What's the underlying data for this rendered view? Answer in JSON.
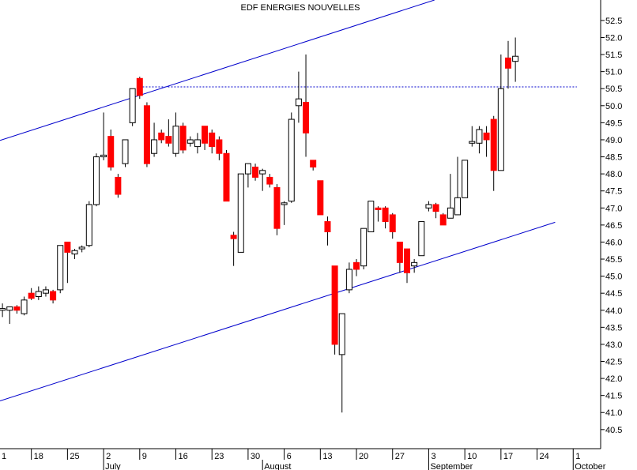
{
  "chart_data": {
    "type": "candlestick",
    "title": "EDF ENERGIES NOUVELLES",
    "x": [
      1,
      2,
      3,
      4,
      5,
      6,
      7,
      8,
      9,
      10,
      11,
      12,
      13,
      14,
      15,
      16,
      17,
      18,
      19,
      20,
      21,
      22,
      23,
      24,
      25,
      26,
      27,
      28,
      29,
      30,
      31,
      32,
      33,
      34,
      35,
      36,
      37,
      38,
      39,
      40,
      41,
      42,
      43,
      44,
      45,
      46,
      47,
      48,
      49,
      50,
      51,
      52,
      53,
      54,
      55,
      56,
      57,
      58,
      59,
      60,
      61,
      62,
      63,
      64,
      65,
      66,
      67,
      68,
      69,
      70,
      71,
      72
    ],
    "open": [
      44.0,
      44.0,
      44.1,
      43.9,
      44.5,
      44.4,
      44.5,
      44.55,
      44.6,
      46.0,
      45.65,
      45.8,
      45.9,
      47.1,
      48.5,
      49.1,
      47.9,
      48.3,
      49.5,
      50.8,
      50.0,
      48.6,
      49.2,
      49.1,
      48.6,
      49.4,
      48.9,
      48.8,
      49.4,
      49.2,
      49.0,
      48.6,
      46.2,
      45.7,
      48.0,
      48.2,
      48.0,
      47.9,
      47.6,
      47.1,
      47.2,
      50.0,
      50.1,
      48.4,
      47.8,
      46.6,
      45.3,
      42.7,
      44.6,
      45.4,
      45.3,
      46.3,
      47.0,
      47.0,
      46.8,
      46.0,
      45.8,
      45.3,
      45.6,
      47.0,
      47.1,
      46.8,
      46.7,
      46.8,
      47.3,
      48.9,
      48.9,
      49.2,
      49.6,
      48.1,
      51.4,
      51.3
    ],
    "high": [
      44.2,
      44.1,
      44.15,
      44.4,
      44.65,
      44.7,
      44.7,
      44.6,
      45.9,
      46.0,
      45.8,
      45.9,
      47.2,
      48.6,
      49.8,
      49.3,
      48.0,
      49.0,
      50.5,
      50.85,
      50.1,
      49.5,
      49.3,
      49.6,
      49.8,
      49.5,
      49.1,
      49.2,
      49.4,
      49.3,
      49.1,
      48.7,
      46.3,
      48.0,
      48.3,
      48.3,
      48.15,
      48.0,
      47.7,
      47.2,
      49.8,
      51.0,
      51.5,
      48.4,
      47.8,
      46.75,
      45.3,
      43.9,
      45.4,
      45.5,
      46.4,
      47.2,
      47.05,
      47.05,
      46.85,
      46.0,
      45.8,
      45.5,
      46.6,
      47.2,
      47.15,
      46.85,
      48.0,
      48.5,
      48.4,
      49.4,
      49.4,
      49.4,
      49.7,
      51.5,
      51.9,
      52.0
    ],
    "low": [
      43.8,
      43.6,
      43.9,
      43.85,
      44.3,
      44.3,
      44.4,
      44.2,
      44.5,
      44.8,
      45.5,
      45.7,
      45.85,
      47.05,
      48.4,
      48.1,
      47.3,
      48.2,
      49.4,
      50.2,
      48.2,
      48.5,
      48.9,
      48.8,
      48.5,
      48.6,
      48.8,
      48.6,
      48.7,
      48.6,
      48.4,
      47.2,
      45.3,
      45.7,
      47.6,
      47.8,
      47.5,
      47.6,
      46.2,
      46.5,
      47.15,
      49.5,
      48.5,
      48.1,
      46.8,
      45.9,
      42.7,
      41.0,
      44.5,
      45.0,
      45.2,
      46.3,
      46.6,
      46.4,
      46.1,
      45.1,
      44.8,
      45.1,
      45.6,
      46.9,
      46.7,
      46.5,
      46.7,
      46.8,
      47.3,
      48.8,
      48.6,
      48.5,
      47.5,
      48.1,
      50.5,
      50.7
    ],
    "close": [
      44.05,
      44.1,
      44.0,
      44.3,
      44.35,
      44.55,
      44.6,
      44.3,
      45.9,
      45.7,
      45.75,
      45.85,
      47.1,
      48.5,
      48.55,
      48.2,
      47.4,
      49.0,
      50.5,
      50.3,
      48.3,
      49.0,
      49.0,
      48.9,
      49.4,
      48.7,
      49.0,
      49.0,
      48.9,
      48.8,
      48.6,
      47.2,
      46.1,
      48.0,
      48.3,
      47.9,
      48.1,
      47.7,
      46.4,
      47.15,
      49.6,
      50.2,
      49.2,
      48.2,
      46.8,
      46.3,
      43.0,
      43.9,
      45.2,
      45.2,
      46.4,
      47.2,
      46.95,
      46.6,
      46.3,
      45.4,
      45.1,
      45.4,
      46.6,
      47.1,
      46.9,
      46.5,
      47.0,
      47.3,
      48.4,
      48.95,
      49.3,
      49.0,
      48.1,
      50.5,
      51.1,
      51.45
    ],
    "up_color": "#ffffff",
    "down_color": "#ff0000",
    "xlim": [
      0.66,
      83.8
    ],
    "ylim": [
      39.94,
      53.1
    ],
    "xticks": [
      {
        "value": 0,
        "label": "1"
      },
      {
        "value": 5,
        "label": "18"
      },
      {
        "value": 10,
        "label": "25"
      },
      {
        "value": 15,
        "label": "2"
      },
      {
        "value": 20,
        "label": "9"
      },
      {
        "value": 25,
        "label": "16"
      },
      {
        "value": 30,
        "label": "23"
      },
      {
        "value": 35,
        "label": "30"
      },
      {
        "value": 40,
        "label": "6"
      },
      {
        "value": 45,
        "label": "13"
      },
      {
        "value": 50,
        "label": "20"
      },
      {
        "value": 55,
        "label": "27"
      },
      {
        "value": 60,
        "label": "3"
      },
      {
        "value": 65,
        "label": "10"
      },
      {
        "value": 70,
        "label": "17"
      },
      {
        "value": 75,
        "label": "24"
      },
      {
        "value": 80,
        "label": "1"
      }
    ],
    "month_labels": [
      {
        "value": 15,
        "label": "July"
      },
      {
        "value": 37,
        "label": "August"
      },
      {
        "value": 60,
        "label": "September"
      },
      {
        "value": 80,
        "label": "October"
      }
    ],
    "yticks": [
      40.5,
      {
        "value": 41,
        "label": "41.0"
      },
      41.5,
      {
        "value": 42,
        "label": "42.0"
      },
      42.5,
      {
        "value": 43,
        "label": "43.0"
      },
      43.5,
      {
        "value": 44,
        "label": "44.0"
      },
      44.5,
      {
        "value": 45,
        "label": "45.0"
      },
      45.5,
      {
        "value": 46,
        "label": "46.0"
      },
      46.5,
      {
        "value": 47,
        "label": "47.0"
      },
      47.5,
      {
        "value": 48,
        "label": "48.0"
      },
      48.5,
      {
        "value": 49,
        "label": "49.0"
      },
      49.5,
      {
        "value": 50,
        "label": "50.0"
      },
      50.5,
      {
        "value": 51,
        "label": "51.0"
      },
      51.5,
      {
        "value": 52,
        "label": "52.0"
      },
      52.5
    ],
    "trendlines": [
      {
        "x": [
          0.66,
          60.8
        ],
        "y": [
          48.98,
          53.1
        ],
        "color": "#0000cc",
        "dashed": false
      },
      {
        "x": [
          0.66,
          77.5
        ],
        "y": [
          41.34,
          46.58
        ],
        "color": "#0000cc",
        "dashed": false
      },
      {
        "x": [
          20.4,
          80.5
        ],
        "y": [
          50.55,
          50.55
        ],
        "color": "#0000cc",
        "dashed": true
      }
    ]
  }
}
